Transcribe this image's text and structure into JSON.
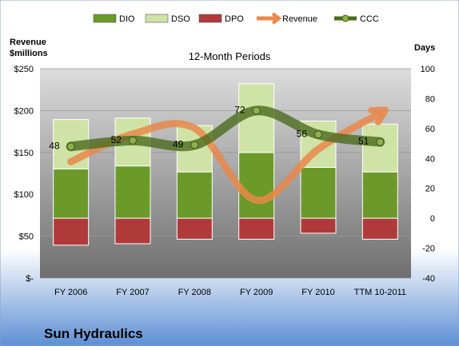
{
  "chart_data": {
    "type": "bar",
    "title": "12-Month Periods",
    "company": "Sun Hydraulics",
    "left_axis": {
      "label_line1": "Revenue",
      "label_line2": "$millions",
      "range": [
        0,
        250
      ],
      "ticks": [
        "$-",
        "$50",
        "$100",
        "$150",
        "$200",
        "$250"
      ],
      "tick_values": [
        0,
        50,
        100,
        150,
        200,
        250
      ]
    },
    "right_axis": {
      "label": "Days",
      "range": [
        -40,
        100
      ],
      "ticks": [
        "-40",
        "-20",
        "0",
        "20",
        "40",
        "60",
        "80",
        "100"
      ],
      "tick_values": [
        -40,
        -20,
        0,
        20,
        40,
        60,
        80,
        100
      ]
    },
    "categories": [
      "FY 2006",
      "FY 2007",
      "FY 2008",
      "FY 2009",
      "FY 2010",
      "TTM 10-2011"
    ],
    "series": [
      {
        "name": "DIO",
        "axis": "right",
        "kind": "stacked-bar",
        "color": "#6b9a2a",
        "values": [
          33,
          35,
          31,
          44,
          34,
          31
        ]
      },
      {
        "name": "DSO",
        "axis": "right",
        "kind": "stacked-bar",
        "color": "#cfe3a6",
        "values": [
          33,
          32,
          31,
          46,
          31,
          32
        ]
      },
      {
        "name": "DPO",
        "axis": "right",
        "kind": "stacked-bar-negative",
        "color": "#b03a3a",
        "values": [
          -18,
          -17,
          -14,
          -14,
          -10,
          -14
        ]
      },
      {
        "name": "Revenue",
        "axis": "left",
        "kind": "line",
        "color": "#e9884a",
        "values": [
          139,
          172,
          179,
          93,
          154,
          197
        ]
      },
      {
        "name": "CCC",
        "axis": "right",
        "kind": "line",
        "color": "#4b6b1e",
        "values": [
          48,
          52,
          49,
          72,
          56,
          51
        ],
        "labels": [
          "48",
          "52",
          "49",
          "72",
          "56",
          "51"
        ]
      }
    ],
    "legend": [
      "DIO",
      "DSO",
      "DPO",
      "Revenue",
      "CCC"
    ],
    "legend_position": "top",
    "grid": true
  }
}
